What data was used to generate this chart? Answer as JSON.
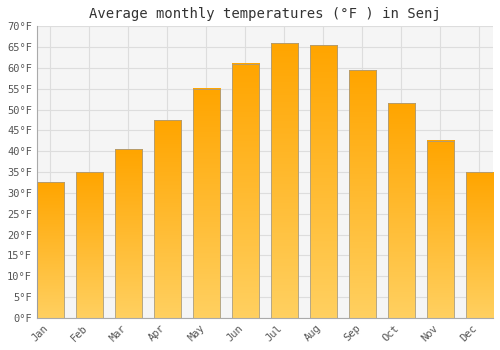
{
  "title": "Average monthly temperatures (°F ) in Senj",
  "months": [
    "Jan",
    "Feb",
    "Mar",
    "Apr",
    "May",
    "Jun",
    "Jul",
    "Aug",
    "Sep",
    "Oct",
    "Nov",
    "Dec"
  ],
  "values": [
    32.5,
    35,
    40.5,
    47.5,
    55,
    61,
    66,
    65.5,
    59.5,
    51.5,
    42.5,
    35
  ],
  "bar_color_main": "#FFA500",
  "bar_color_light": "#FFD060",
  "bar_edge_color": "#999999",
  "ylim": [
    0,
    70
  ],
  "yticks": [
    0,
    5,
    10,
    15,
    20,
    25,
    30,
    35,
    40,
    45,
    50,
    55,
    60,
    65,
    70
  ],
  "background_color": "#FFFFFF",
  "plot_bg_color": "#F5F5F5",
  "grid_color": "#DDDDDD",
  "title_fontsize": 10,
  "tick_fontsize": 7.5,
  "font_family": "monospace"
}
